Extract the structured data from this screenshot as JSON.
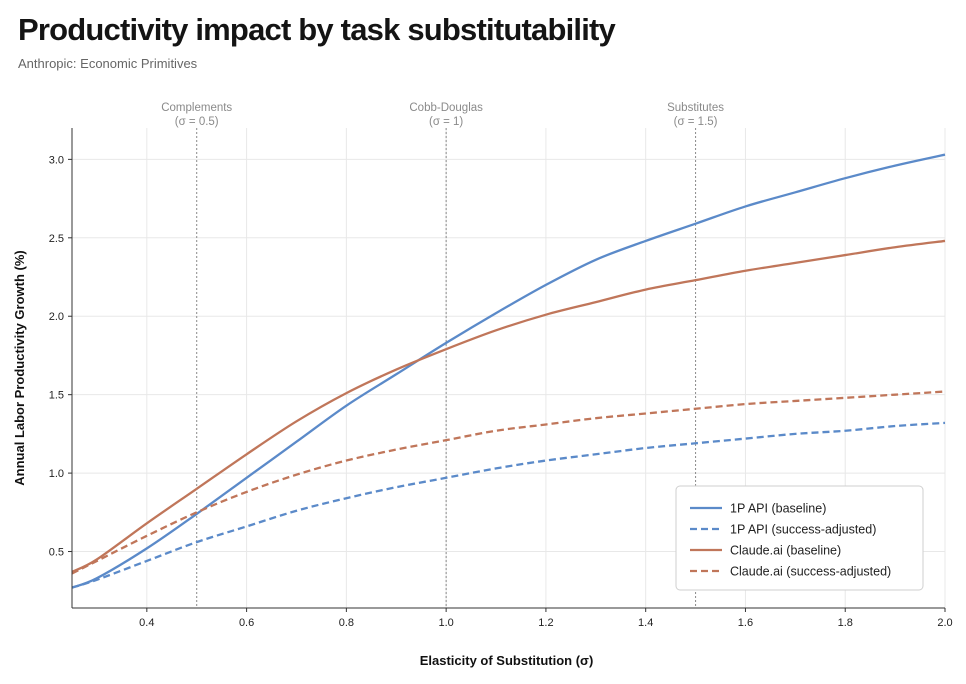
{
  "header": {
    "title": "Productivity impact by task substitutability",
    "subtitle": "Anthropic: Economic Primitives"
  },
  "colors": {
    "blue": "#5b8ac9",
    "orange": "#c0765a",
    "grid": "#e8e8e8",
    "ref_line": "#8a8a8a",
    "axis": "#333333"
  },
  "chart_data": {
    "type": "line",
    "title": "Productivity impact by task substitutability",
    "xlabel": "Elasticity of Substitution (σ)",
    "ylabel": "Annual Labor Productivity Growth (%)",
    "xlim": [
      0.25,
      2.0
    ],
    "ylim": [
      0.14,
      3.2
    ],
    "xticks": [
      0.4,
      0.6,
      0.8,
      1.0,
      1.2,
      1.4,
      1.6,
      1.8,
      2.0
    ],
    "xtick_labels": [
      "0.4",
      "0.6",
      "0.8",
      "1.0",
      "1.2",
      "1.4",
      "1.6",
      "1.8",
      "2.0"
    ],
    "yticks": [
      0.5,
      1.0,
      1.5,
      2.0,
      2.5,
      3.0
    ],
    "ytick_labels": [
      "0.5",
      "1.0",
      "1.5",
      "2.0",
      "2.5",
      "3.0"
    ],
    "grid": true,
    "legend_position": "bottom-right",
    "reference_lines": [
      {
        "x": 0.5,
        "label": "Complements",
        "sublabel": "(σ = 0.5)"
      },
      {
        "x": 1.0,
        "label": "Cobb-Douglas",
        "sublabel": "(σ = 1)"
      },
      {
        "x": 1.5,
        "label": "Substitutes",
        "sublabel": "(σ = 1.5)"
      }
    ],
    "series": [
      {
        "name": "1P API (baseline)",
        "style": "solid",
        "color": "#5b8ac9",
        "x": [
          0.25,
          0.3,
          0.4,
          0.5,
          0.6,
          0.7,
          0.8,
          0.9,
          1.0,
          1.1,
          1.2,
          1.3,
          1.4,
          1.5,
          1.6,
          1.7,
          1.8,
          1.9,
          2.0
        ],
        "y": [
          0.27,
          0.33,
          0.52,
          0.74,
          0.97,
          1.2,
          1.43,
          1.63,
          1.83,
          2.02,
          2.2,
          2.36,
          2.48,
          2.59,
          2.7,
          2.79,
          2.88,
          2.96,
          3.03
        ]
      },
      {
        "name": "1P API (success-adjusted)",
        "style": "dashed",
        "color": "#5b8ac9",
        "x": [
          0.25,
          0.3,
          0.4,
          0.5,
          0.6,
          0.7,
          0.8,
          0.9,
          1.0,
          1.1,
          1.2,
          1.3,
          1.4,
          1.5,
          1.6,
          1.7,
          1.8,
          1.9,
          2.0
        ],
        "y": [
          0.27,
          0.32,
          0.44,
          0.56,
          0.66,
          0.76,
          0.84,
          0.91,
          0.97,
          1.03,
          1.08,
          1.12,
          1.16,
          1.19,
          1.22,
          1.25,
          1.27,
          1.3,
          1.32
        ]
      },
      {
        "name": "Claude.ai (baseline)",
        "style": "solid",
        "color": "#c0765a",
        "x": [
          0.25,
          0.3,
          0.4,
          0.5,
          0.6,
          0.7,
          0.8,
          0.9,
          1.0,
          1.1,
          1.2,
          1.3,
          1.4,
          1.5,
          1.6,
          1.7,
          1.8,
          1.9,
          2.0
        ],
        "y": [
          0.37,
          0.45,
          0.68,
          0.9,
          1.12,
          1.33,
          1.51,
          1.66,
          1.79,
          1.91,
          2.01,
          2.09,
          2.17,
          2.23,
          2.29,
          2.34,
          2.39,
          2.44,
          2.48
        ]
      },
      {
        "name": "Claude.ai (success-adjusted)",
        "style": "dashed",
        "color": "#c0765a",
        "x": [
          0.25,
          0.3,
          0.4,
          0.5,
          0.6,
          0.7,
          0.8,
          0.9,
          1.0,
          1.1,
          1.2,
          1.3,
          1.4,
          1.5,
          1.6,
          1.7,
          1.8,
          1.9,
          2.0
        ],
        "y": [
          0.36,
          0.44,
          0.6,
          0.75,
          0.88,
          0.99,
          1.08,
          1.15,
          1.21,
          1.27,
          1.31,
          1.35,
          1.38,
          1.41,
          1.44,
          1.46,
          1.48,
          1.5,
          1.52
        ]
      }
    ]
  }
}
